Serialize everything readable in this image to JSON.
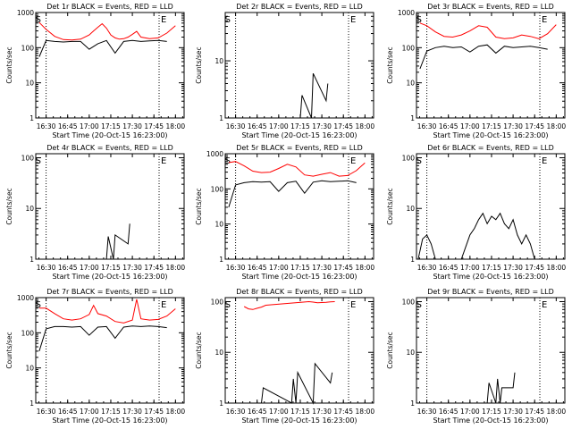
{
  "chart_data": [
    {
      "type": "line",
      "title": "Det 1r BLACK = Events, RED = LLD",
      "xlabel": "Start Time (20-Oct-15 16:23:00)",
      "ylabel": "Counts/sec",
      "yscale": "log",
      "ylim": [
        1,
        1000
      ],
      "xticks": [
        "16:30",
        "16:45",
        "17:00",
        "17:15",
        "17:30",
        "17:45",
        "18:00"
      ],
      "yticks": [
        "1",
        "10",
        "100",
        "1000"
      ],
      "markers": [
        "S",
        "E"
      ],
      "series": [
        {
          "color": "#ff0000",
          "x": [
            16.42,
            16.5,
            16.6,
            16.7,
            16.8,
            16.9,
            17.0,
            17.05,
            17.1,
            17.15,
            17.2,
            17.25,
            17.3,
            17.35,
            17.4,
            17.45,
            17.5,
            17.55,
            17.6,
            17.7,
            17.8,
            17.9,
            18.0
          ],
          "y": [
            520,
            330,
            210,
            170,
            165,
            175,
            230,
            300,
            380,
            480,
            360,
            230,
            190,
            175,
            180,
            200,
            240,
            290,
            200,
            180,
            190,
            260,
            420
          ]
        },
        {
          "color": "#000000",
          "x": [
            16.42,
            16.5,
            16.6,
            16.7,
            16.8,
            16.9,
            17.0,
            17.1,
            17.2,
            17.3,
            17.4,
            17.5,
            17.6,
            17.7,
            17.8,
            17.9
          ],
          "y": [
            55,
            160,
            150,
            145,
            150,
            150,
            90,
            130,
            160,
            70,
            150,
            160,
            150,
            155,
            160,
            150
          ]
        }
      ]
    },
    {
      "type": "line",
      "title": "Det 2r BLACK = Events, RED = LLD",
      "xlabel": "Start Time (20-Oct-15 16:23:00)",
      "ylabel": "Counts/sec",
      "yscale": "log",
      "ylim": [
        1,
        70
      ],
      "xticks": [
        "16:30",
        "16:45",
        "17:00",
        "17:15",
        "17:30",
        "17:45",
        "18:00"
      ],
      "yticks": [
        "1",
        "10"
      ],
      "markers": [
        "S",
        "E"
      ],
      "series": [
        {
          "color": "#000000",
          "x": [
            17.25,
            17.27,
            17.38,
            17.4,
            17.55,
            17.57
          ],
          "y": [
            1,
            2.5,
            1,
            6,
            2,
            4
          ]
        }
      ]
    },
    {
      "type": "line",
      "title": "Det 3r BLACK = Events, RED = LLD",
      "xlabel": "Start Time (20-Oct-15 16:23:00)",
      "ylabel": "Counts/sec",
      "yscale": "log",
      "ylim": [
        1,
        1000
      ],
      "xticks": [
        "16:30",
        "16:45",
        "17:00",
        "17:15",
        "17:30",
        "17:45",
        "18:00"
      ],
      "yticks": [
        "1",
        "10",
        "100",
        "1000"
      ],
      "markers": [
        "S",
        "E"
      ],
      "series": [
        {
          "color": "#ff0000",
          "x": [
            16.42,
            16.5,
            16.6,
            16.7,
            16.8,
            16.9,
            17.0,
            17.1,
            17.2,
            17.3,
            17.4,
            17.5,
            17.6,
            17.7,
            17.8,
            17.9,
            18.0
          ],
          "y": [
            500,
            420,
            280,
            210,
            200,
            230,
            300,
            420,
            380,
            200,
            180,
            190,
            230,
            210,
            180,
            250,
            450
          ]
        },
        {
          "color": "#000000",
          "x": [
            16.42,
            16.5,
            16.6,
            16.7,
            16.8,
            16.9,
            17.0,
            17.1,
            17.2,
            17.3,
            17.4,
            17.5,
            17.6,
            17.7,
            17.8,
            17.9
          ],
          "y": [
            25,
            80,
            100,
            110,
            100,
            105,
            75,
            110,
            120,
            70,
            110,
            100,
            105,
            110,
            100,
            90
          ]
        }
      ]
    },
    {
      "type": "line",
      "title": "Det 4r BLACK = Events, RED = LLD",
      "xlabel": "Start Time (20-Oct-15 16:23:00)",
      "ylabel": "Counts/sec",
      "yscale": "log",
      "ylim": [
        1,
        120
      ],
      "xticks": [
        "16:30",
        "16:45",
        "17:00",
        "17:15",
        "17:30",
        "17:45",
        "18:00"
      ],
      "yticks": [
        "1",
        "10",
        "100"
      ],
      "markers": [
        "S",
        "E"
      ],
      "series": [
        {
          "color": "#000000",
          "x": [
            17.2,
            17.22,
            17.28,
            17.3,
            17.45,
            17.47
          ],
          "y": [
            1,
            2.8,
            1,
            3,
            2,
            5
          ]
        }
      ]
    },
    {
      "type": "line",
      "title": "Det 5r BLACK = Events, RED = LLD",
      "xlabel": "Start Time (20-Oct-15 16:23:00)",
      "ylabel": "Counts/sec",
      "yscale": "log",
      "ylim": [
        1,
        1000
      ],
      "xticks": [
        "16:30",
        "16:45",
        "17:00",
        "17:15",
        "17:30",
        "17:45",
        "18:00"
      ],
      "yticks": [
        "1",
        "10",
        "100",
        "1000"
      ],
      "markers": [
        "S",
        "E"
      ],
      "series": [
        {
          "color": "#ff0000",
          "x": [
            16.42,
            16.5,
            16.6,
            16.7,
            16.8,
            16.9,
            17.0,
            17.1,
            17.2,
            17.3,
            17.4,
            17.5,
            17.6,
            17.7,
            17.8,
            17.9,
            18.0
          ],
          "y": [
            560,
            600,
            450,
            320,
            290,
            300,
            380,
            500,
            420,
            250,
            230,
            260,
            290,
            230,
            240,
            330,
            550
          ]
        },
        {
          "color": "#000000",
          "x": [
            16.42,
            16.5,
            16.6,
            16.7,
            16.8,
            16.9,
            17.0,
            17.1,
            17.2,
            17.3,
            17.4,
            17.5,
            17.6,
            17.7,
            17.8,
            17.9
          ],
          "y": [
            30,
            130,
            150,
            160,
            155,
            160,
            85,
            150,
            165,
            75,
            155,
            170,
            160,
            165,
            170,
            150
          ]
        }
      ]
    },
    {
      "type": "line",
      "title": "Det 6r BLACK = Events, RED = LLD",
      "xlabel": "Start Time (20-Oct-15 16:23:00)",
      "ylabel": "Counts/sec",
      "yscale": "log",
      "ylim": [
        1,
        120
      ],
      "xticks": [
        "16:30",
        "16:45",
        "17:00",
        "17:15",
        "17:30",
        "17:45",
        "18:00"
      ],
      "yticks": [
        "1",
        "10",
        "100"
      ],
      "markers": [
        "S",
        "E"
      ],
      "series": [
        {
          "color": "#000000",
          "x": [
            16.4,
            16.45,
            16.5,
            16.55,
            16.6,
            16.9,
            17.0,
            17.05,
            17.1,
            17.15,
            17.2,
            17.25,
            17.3,
            17.35,
            17.4,
            17.45,
            17.5,
            17.55,
            17.6,
            17.65,
            17.7,
            17.75
          ],
          "y": [
            1,
            2.5,
            3,
            2,
            1,
            1,
            3,
            4,
            6,
            8,
            5,
            7,
            6,
            8,
            5,
            4,
            6,
            3,
            2,
            3,
            2,
            1
          ]
        }
      ]
    },
    {
      "type": "line",
      "title": "Det 7r BLACK = Events, RED = LLD",
      "xlabel": "Start Time (20-Oct-15 16:23:00)",
      "ylabel": "Counts/sec",
      "yscale": "log",
      "ylim": [
        1,
        1000
      ],
      "xticks": [
        "16:30",
        "16:45",
        "17:00",
        "17:15",
        "17:30",
        "17:45",
        "18:00"
      ],
      "yticks": [
        "1",
        "10",
        "100",
        "1000"
      ],
      "markers": [
        "S",
        "E"
      ],
      "series": [
        {
          "color": "#ff0000",
          "x": [
            16.42,
            16.5,
            16.6,
            16.7,
            16.8,
            16.9,
            17.0,
            17.05,
            17.1,
            17.2,
            17.3,
            17.4,
            17.5,
            17.55,
            17.6,
            17.7,
            17.8,
            17.9,
            18.0
          ],
          "y": [
            500,
            500,
            350,
            250,
            230,
            250,
            330,
            600,
            350,
            300,
            210,
            190,
            230,
            900,
            250,
            230,
            240,
            300,
            480
          ]
        },
        {
          "color": "#000000",
          "x": [
            16.42,
            16.5,
            16.6,
            16.7,
            16.8,
            16.9,
            17.0,
            17.1,
            17.2,
            17.3,
            17.4,
            17.5,
            17.6,
            17.7,
            17.8,
            17.9
          ],
          "y": [
            30,
            130,
            150,
            150,
            145,
            150,
            85,
            145,
            150,
            70,
            145,
            155,
            150,
            155,
            150,
            140
          ]
        }
      ]
    },
    {
      "type": "line",
      "title": "Det 8r BLACK = Events, RED = LLD",
      "xlabel": "Start Time (20-Oct-15 16:23:00)",
      "ylabel": "Counts/sec",
      "yscale": "log",
      "ylim": [
        1,
        120
      ],
      "xticks": [
        "16:30",
        "16:45",
        "17:00",
        "17:15",
        "17:30",
        "17:45",
        "18:00"
      ],
      "yticks": [
        "1",
        "10",
        "100"
      ],
      "markers": [
        "S",
        "E"
      ],
      "series": [
        {
          "color": "#ff0000",
          "x": [
            16.6,
            16.65,
            16.7,
            16.75,
            16.8,
            16.85,
            17.35,
            17.4,
            17.45,
            17.5,
            17.55,
            17.6,
            17.65
          ],
          "y": [
            80,
            72,
            70,
            74,
            78,
            85,
            100,
            98,
            95,
            96,
            97,
            99,
            100
          ]
        },
        {
          "color": "#000000",
          "x": [
            16.8,
            16.82,
            17.15,
            17.17,
            17.2,
            17.22,
            17.4,
            17.42,
            17.6,
            17.62
          ],
          "y": [
            1,
            2,
            1,
            3,
            1,
            4,
            1,
            6,
            2.5,
            4
          ]
        }
      ]
    },
    {
      "type": "line",
      "title": "Det 9r BLACK = Events, RED = LLD",
      "xlabel": "Start Time (20-Oct-15 16:23:00)",
      "ylabel": "Counts/sec",
      "yscale": "log",
      "ylim": [
        1,
        120
      ],
      "xticks": [
        "16:30",
        "16:45",
        "17:00",
        "17:15",
        "17:30",
        "17:45",
        "18:00"
      ],
      "yticks": [
        "1",
        "10",
        "100"
      ],
      "markers": [
        "S",
        "E"
      ],
      "series": [
        {
          "color": "#000000",
          "x": [
            17.2,
            17.22,
            17.3,
            17.32,
            17.35,
            17.37,
            17.5,
            17.52
          ],
          "y": [
            1,
            2.5,
            1,
            3,
            1,
            2,
            2,
            4
          ]
        }
      ]
    }
  ]
}
